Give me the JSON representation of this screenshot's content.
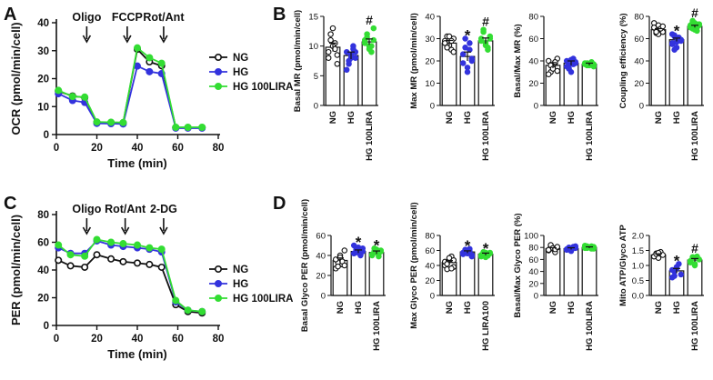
{
  "panel_letters": [
    "A",
    "B",
    "C",
    "D"
  ],
  "colors": {
    "NG": "#111111",
    "HG": "#3333dd",
    "HG100": "#33dd33"
  },
  "chart_data": [
    {
      "id": "A",
      "type": "line",
      "ylabel": "OCR (pmol/min/cell)",
      "xlabel": "Time (min)",
      "xlim": [
        0,
        80
      ],
      "ylim": [
        0,
        40
      ],
      "xticks": [
        0,
        20,
        40,
        60,
        80
      ],
      "yticks": [
        0,
        10,
        20,
        30,
        40
      ],
      "annotations": [
        {
          "text": "Oligo",
          "x": 15
        },
        {
          "text": "FCCP",
          "x": 35
        },
        {
          "text": "Rot/Ant",
          "x": 53
        }
      ],
      "x": [
        1,
        8,
        14,
        20,
        27,
        33,
        40,
        46,
        52,
        59,
        65,
        72
      ],
      "series": [
        {
          "name": "NG",
          "color": "#111111",
          "values": [
            15.5,
            13.8,
            13.2,
            4.4,
            4.3,
            4.2,
            30.5,
            26.0,
            24.6,
            2.5,
            2.5,
            2.5
          ]
        },
        {
          "name": "HG",
          "color": "#3333dd",
          "values": [
            14.6,
            12.2,
            11.5,
            4.0,
            3.9,
            3.8,
            24.5,
            22.5,
            21.8,
            2.3,
            2.3,
            2.3
          ]
        },
        {
          "name": "HG 100LIRA",
          "color": "#33dd33",
          "values": [
            15.8,
            13.6,
            13.4,
            4.5,
            4.4,
            4.3,
            31.0,
            27.5,
            25.5,
            2.6,
            2.6,
            2.6
          ]
        }
      ]
    },
    {
      "id": "B1",
      "type": "bar",
      "ylabel": "Basal MR (pmol/min/cell)",
      "ylim": [
        0,
        15
      ],
      "yticks": [
        0,
        5,
        10,
        15
      ],
      "categories": [
        "NG",
        "HG",
        "HG 100LIRA"
      ],
      "values": [
        9.8,
        8.4,
        10.7
      ],
      "errors": [
        0.7,
        0.6,
        0.5
      ],
      "marks": [
        "",
        "",
        "#"
      ],
      "points": [
        [
          9,
          12,
          13,
          10.5,
          7,
          8,
          11,
          10,
          9.5,
          8.5
        ],
        [
          9,
          7,
          8,
          10,
          9,
          6,
          7.5,
          8.5,
          9.5,
          8
        ],
        [
          11,
          12,
          10,
          9,
          13,
          10.5,
          11.5,
          9.5,
          10,
          11
        ]
      ]
    },
    {
      "id": "B2",
      "type": "bar",
      "ylabel": "Max MR (pmol/min/cell)",
      "ylim": [
        0,
        40
      ],
      "yticks": [
        0,
        10,
        20,
        30,
        40
      ],
      "categories": [
        "NG",
        "HG",
        "HG 100LIRA"
      ],
      "values": [
        28,
        22,
        29
      ],
      "errors": [
        1.2,
        2.0,
        1.3
      ],
      "marks": [
        "",
        "*",
        "#"
      ],
      "points": [
        [
          29,
          31,
          27,
          25,
          30,
          28,
          26,
          31,
          29,
          24
        ],
        [
          19,
          26,
          15,
          28,
          20,
          23,
          30,
          17,
          25,
          21
        ],
        [
          30,
          33,
          27,
          25,
          31,
          29,
          34,
          28,
          26,
          30
        ]
      ]
    },
    {
      "id": "B3",
      "type": "bar",
      "ylabel": "Basal/Max MR (%)",
      "ylim": [
        0,
        80
      ],
      "yticks": [
        0,
        20,
        40,
        60,
        80
      ],
      "categories": [
        "NG",
        "HG",
        "HG 100LIRA"
      ],
      "values": [
        36,
        38,
        37
      ],
      "errors": [
        2.5,
        2.0,
        1.0
      ],
      "marks": [
        "",
        "",
        ""
      ],
      "points": [
        [
          40,
          30,
          35,
          38,
          42,
          28,
          36,
          33,
          39,
          31
        ],
        [
          40,
          36,
          30,
          42,
          38,
          35,
          33,
          41,
          37,
          39
        ],
        [
          38,
          36,
          37,
          39,
          35,
          37,
          38,
          36,
          38,
          37
        ]
      ]
    },
    {
      "id": "B4",
      "type": "bar",
      "ylabel": "Coupling efficiency (%)",
      "ylim": [
        0,
        80
      ],
      "yticks": [
        0,
        20,
        40,
        60,
        80
      ],
      "categories": [
        "NG",
        "HG",
        "HG 100LIRA"
      ],
      "values": [
        68,
        59,
        71
      ],
      "errors": [
        1.0,
        1.5,
        1.0
      ],
      "marks": [
        "",
        "*",
        "#"
      ],
      "points": [
        [
          70,
          65,
          72,
          68,
          66,
          74,
          67,
          64,
          69,
          71,
          70,
          66
        ],
        [
          55,
          62,
          52,
          60,
          58,
          64,
          50,
          57,
          61,
          59,
          56,
          63
        ],
        [
          72,
          75,
          68,
          70,
          73,
          71,
          69,
          74,
          67,
          72,
          70,
          76
        ]
      ]
    },
    {
      "id": "C",
      "type": "line",
      "ylabel": "PER (pmol/min/cell)",
      "xlabel": "Time (min)",
      "xlim": [
        0,
        80
      ],
      "ylim": [
        0,
        80
      ],
      "xticks": [
        0,
        20,
        40,
        60,
        80
      ],
      "yticks": [
        0,
        20,
        40,
        60,
        80
      ],
      "annotations": [
        {
          "text": "Oligo",
          "x": 15
        },
        {
          "text": "Rot/Ant",
          "x": 34
        },
        {
          "text": "2-DG",
          "x": 53
        }
      ],
      "x": [
        1,
        7,
        14,
        20,
        27,
        33,
        40,
        46,
        52,
        59,
        65,
        72
      ],
      "series": [
        {
          "name": "NG",
          "color": "#111111",
          "values": [
            47,
            43,
            42,
            51,
            48,
            46,
            45,
            44,
            42,
            15,
            10,
            9
          ]
        },
        {
          "name": "HG",
          "color": "#3333dd",
          "values": [
            56,
            52,
            52,
            61,
            58,
            57,
            56,
            55,
            53,
            17,
            11,
            10
          ]
        },
        {
          "name": "HG 100LIRA",
          "color": "#33dd33",
          "values": [
            58,
            51,
            50,
            62,
            60,
            59,
            58,
            56,
            55,
            18,
            11,
            10
          ]
        }
      ]
    },
    {
      "id": "D1",
      "type": "bar",
      "ylabel": "Basal Glyco PER (pmol/min/cell)",
      "ylim": [
        0,
        60
      ],
      "yticks": [
        0,
        20,
        40,
        60
      ],
      "categories": [
        "NG",
        "HG",
        "HG 100LIRA"
      ],
      "values": [
        35,
        44,
        43
      ],
      "errors": [
        2.5,
        1.5,
        1.5
      ],
      "marks": [
        "",
        "*",
        "*"
      ],
      "points": [
        [
          27,
          33,
          40,
          31,
          45,
          36,
          29,
          38,
          34,
          30
        ],
        [
          42,
          46,
          48,
          40,
          44,
          50,
          43,
          45,
          41,
          47
        ],
        [
          40,
          44,
          46,
          42,
          45,
          41,
          47,
          43,
          39,
          44
        ]
      ]
    },
    {
      "id": "D2",
      "type": "bar",
      "ylabel": "Max Glyco PER (pmol/min/cell)",
      "ylim": [
        0,
        80
      ],
      "yticks": [
        0,
        20,
        40,
        60,
        80
      ],
      "categories": [
        "NG",
        "HG",
        "HG LIRA100"
      ],
      "values": [
        44,
        58,
        55
      ],
      "errors": [
        2.5,
        1.5,
        1.5
      ],
      "marks": [
        "",
        "*",
        "*"
      ],
      "points": [
        [
          40,
          35,
          48,
          52,
          38,
          45,
          42,
          50,
          36,
          47
        ],
        [
          55,
          60,
          58,
          62,
          54,
          57,
          61,
          56,
          59,
          52
        ],
        [
          52,
          55,
          57,
          53,
          56,
          54,
          58,
          51,
          55,
          57
        ]
      ]
    },
    {
      "id": "D3",
      "type": "bar",
      "ylabel": "Basal/Max Glyco PER (%)",
      "ylim": [
        0,
        100
      ],
      "yticks": [
        0,
        20,
        40,
        60,
        80,
        100
      ],
      "categories": [
        "NG",
        "HG",
        "HG 100LIRA"
      ],
      "values": [
        78,
        78,
        80
      ],
      "errors": [
        1.5,
        1.5,
        1.0
      ],
      "marks": [
        "",
        "",
        ""
      ],
      "points": [
        [
          75,
          82,
          78,
          72,
          80,
          76,
          84,
          79,
          77,
          81
        ],
        [
          76,
          80,
          74,
          79,
          82,
          77,
          78,
          75,
          81,
          79
        ],
        [
          79,
          82,
          80,
          78,
          81,
          83,
          79,
          80,
          82,
          78
        ]
      ]
    },
    {
      "id": "D4",
      "type": "bar",
      "ylabel": "Mito ATP/Glyco ATP",
      "ylim": [
        0.0,
        2.0
      ],
      "yticks": [
        "0.0",
        "0.5",
        "1.0",
        "1.5",
        "2.0"
      ],
      "categories": [
        "NG",
        "HG",
        "HG 100LIRA"
      ],
      "values": [
        1.35,
        0.82,
        1.18
      ],
      "errors": [
        0.04,
        0.08,
        0.05
      ],
      "marks": [
        "",
        "*",
        "#"
      ],
      "points": [
        [
          1.3,
          1.4,
          1.25,
          1.45,
          1.35,
          1.3,
          1.38,
          1.42
        ],
        [
          0.6,
          0.8,
          0.95,
          1.05,
          0.7,
          0.85,
          0.65,
          0.9
        ],
        [
          1.1,
          1.25,
          1.0,
          1.3,
          1.2,
          1.15,
          1.28,
          1.05
        ]
      ]
    }
  ]
}
